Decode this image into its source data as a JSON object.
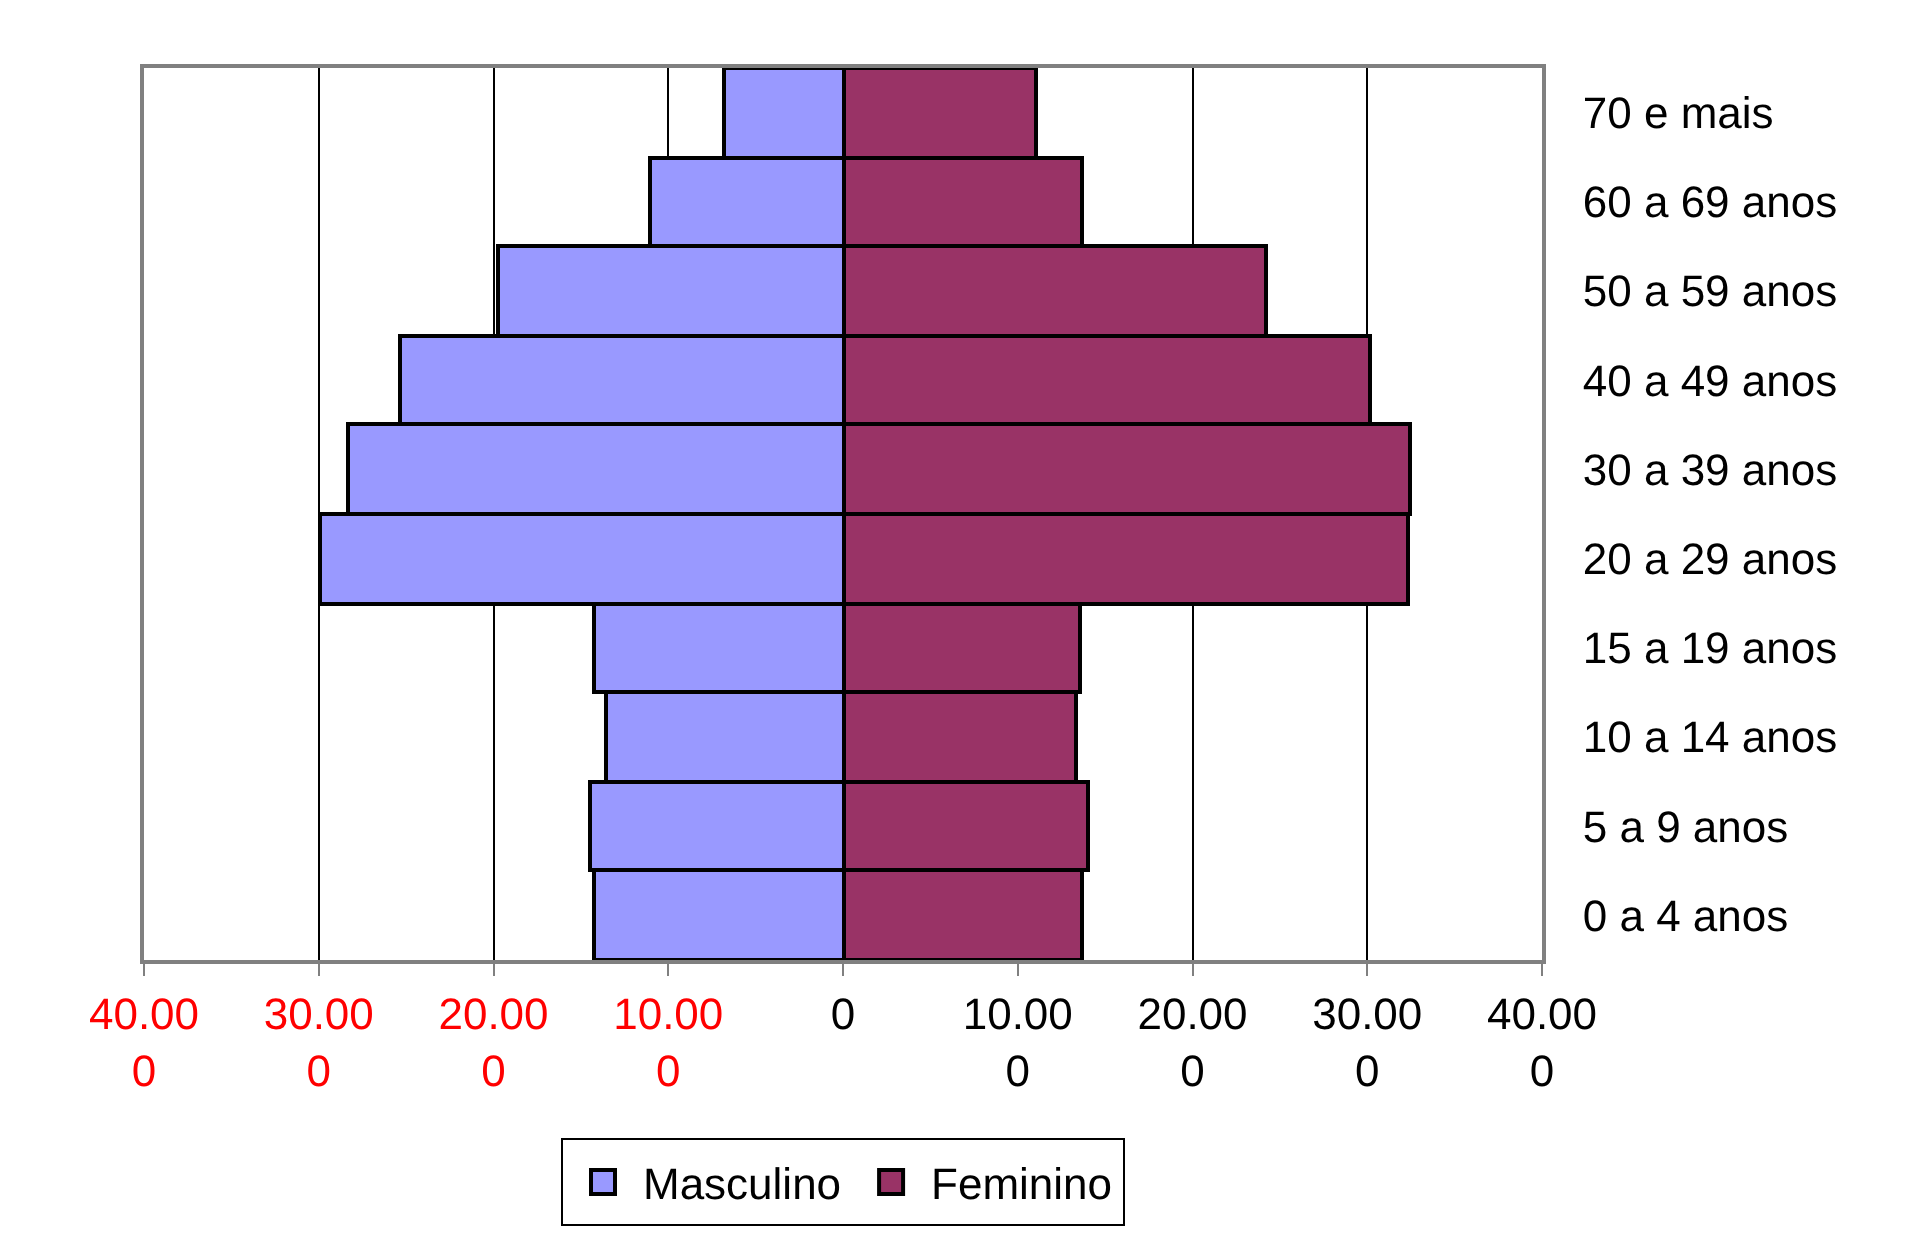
{
  "chart_data": {
    "type": "bar",
    "orientation": "horizontal",
    "stacked": true,
    "categories": [
      "70 e mais",
      "60 a 69 anos",
      "50 a 59 anos",
      "40 a 49 anos",
      "30 a 39 anos",
      "20 a 29 anos",
      "15 a 19 anos",
      "10 a 14 anos",
      "5 a 9 anos",
      "0 a 4 anos"
    ],
    "series": [
      {
        "name": "Masculino",
        "color": "#9999ff",
        "values": [
          -6.8,
          -11.1,
          -19.8,
          -25.3,
          -28.3,
          -29.9,
          -14.2,
          -13.6,
          -14.5,
          -14.2
        ]
      },
      {
        "name": "Feminino",
        "color": "#993366",
        "values": [
          11.1,
          13.7,
          24.2,
          30.1,
          32.4,
          32.3,
          13.6,
          13.3,
          14.0,
          13.7
        ]
      }
    ],
    "xlim": [
      -40,
      40
    ],
    "xticks": [
      {
        "value": -40,
        "label": "40.000"
      },
      {
        "value": -30,
        "label": "30.000"
      },
      {
        "value": -20,
        "label": "20.000"
      },
      {
        "value": -10,
        "label": "10.000"
      },
      0,
      {
        "value": 10,
        "label": "10.000"
      },
      {
        "value": 20,
        "label": "20.000"
      },
      {
        "value": 30,
        "label": "30.000"
      },
      {
        "value": 40,
        "label": "40.000"
      }
    ],
    "grid": "x",
    "legend": "bottom"
  }
}
